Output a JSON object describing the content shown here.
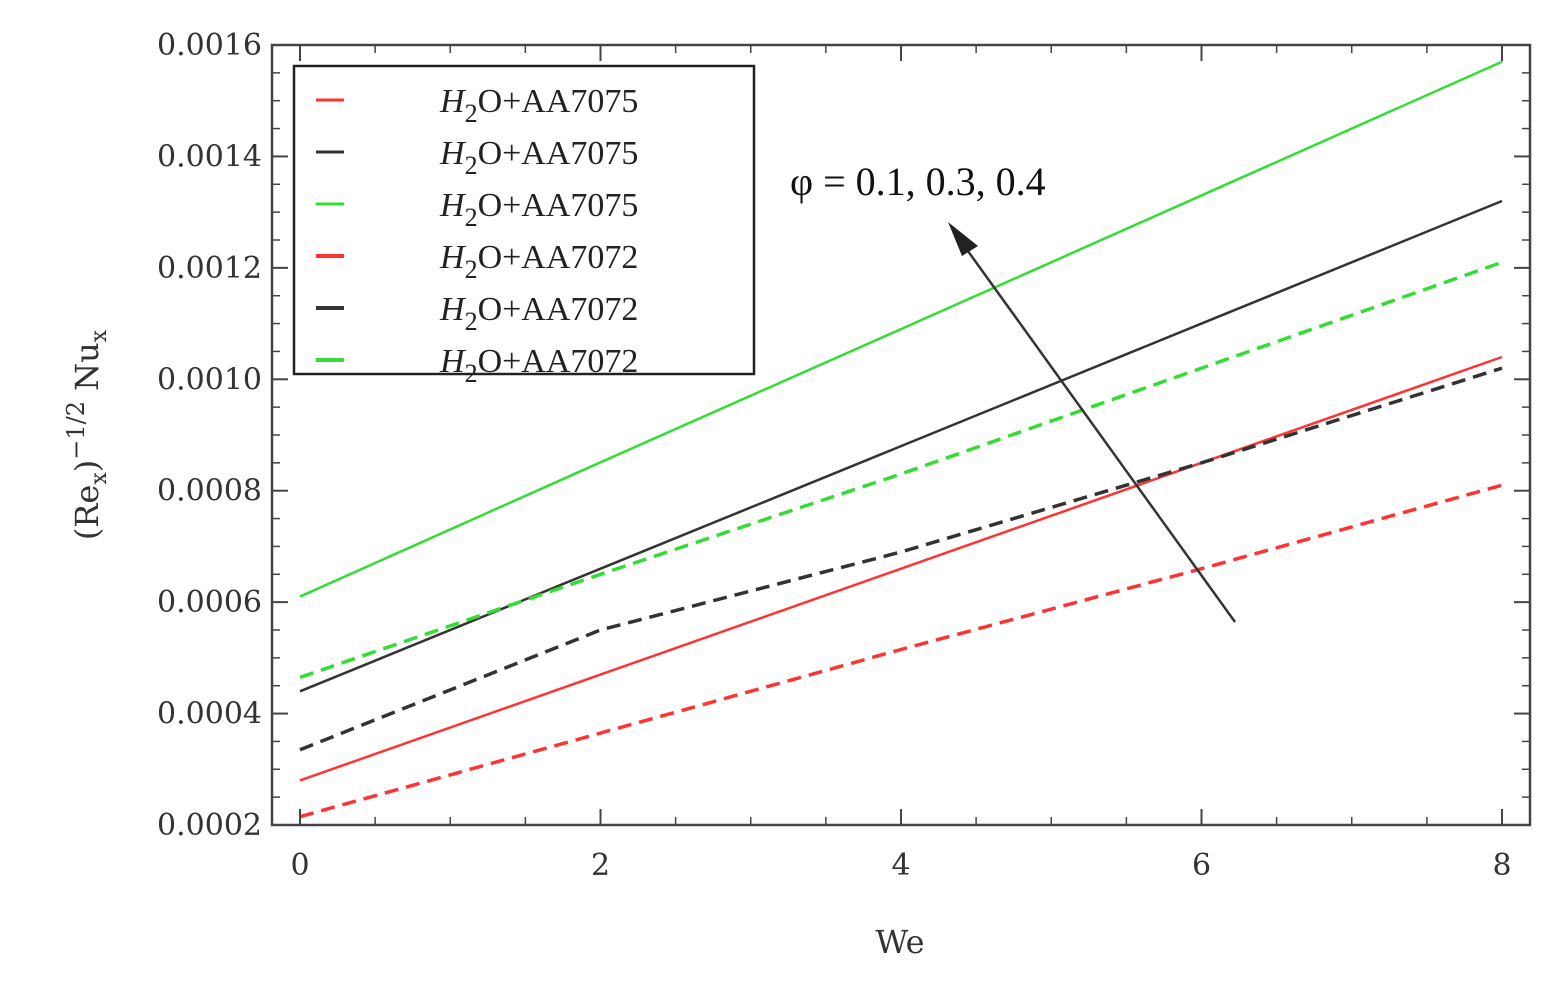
{
  "chart_data": {
    "type": "line",
    "xlabel": "We",
    "ylabel": "(Re_x)^-1/2 Nu_x",
    "xlim": [
      0,
      8
    ],
    "ylim": [
      0.0002,
      0.0016
    ],
    "x_ticks": [
      0,
      2,
      4,
      6,
      8
    ],
    "x_tick_labels": [
      "0",
      "2",
      "4",
      "6",
      "8"
    ],
    "y_ticks": [
      0.0002,
      0.0004,
      0.0006,
      0.0008,
      0.001,
      0.0012,
      0.0014,
      0.0016
    ],
    "y_tick_labels": [
      "0.0002",
      "0.0004",
      "0.0006",
      "0.0008",
      "0.0010",
      "0.0012",
      "0.0014",
      "0.0016"
    ],
    "legend_placement": "top-left",
    "annotation": "φ = 0.1, 0.3, 0.4",
    "series": [
      {
        "name": "H2O+AA7075",
        "legend_base": "O+AA7075",
        "color": "#ff3333",
        "style": "solid",
        "x": [
          0,
          2,
          4,
          6,
          8
        ],
        "values": [
          0.00028,
          0.00047,
          0.00066,
          0.00085,
          0.00104
        ]
      },
      {
        "name": "H2O+AA7075",
        "legend_base": "O+AA7075",
        "color": "#333333",
        "style": "solid",
        "x": [
          0,
          2,
          4,
          6,
          8
        ],
        "values": [
          0.00044,
          0.00066,
          0.00088,
          0.0011,
          0.00132
        ]
      },
      {
        "name": "H2O+AA7075",
        "legend_base": "O+AA7075",
        "color": "#33dd33",
        "style": "solid",
        "x": [
          0,
          2,
          4,
          6,
          8
        ],
        "values": [
          0.00061,
          0.000851,
          0.00109,
          0.00133,
          0.00157
        ]
      },
      {
        "name": "H2O+AA7072",
        "legend_base": "O+AA7072",
        "color": "#ff3333",
        "style": "dashed",
        "x": [
          0,
          2,
          4,
          6,
          8
        ],
        "values": [
          0.000215,
          0.000365,
          0.000515,
          0.00066,
          0.00081
        ]
      },
      {
        "name": "H2O+AA7072",
        "legend_base": "O+AA7072",
        "color": "#333333",
        "style": "dashed",
        "x": [
          0,
          2,
          4,
          6,
          8
        ],
        "values": [
          0.000335,
          0.00055,
          0.00069,
          0.00085,
          0.00102
        ]
      },
      {
        "name": "H2O+AA7072",
        "legend_base": "O+AA7072",
        "color": "#33dd33",
        "style": "dashed",
        "x": [
          0,
          2,
          4,
          6,
          8
        ],
        "values": [
          0.000465,
          0.00065,
          0.00083,
          0.00102,
          0.00121
        ]
      }
    ]
  }
}
